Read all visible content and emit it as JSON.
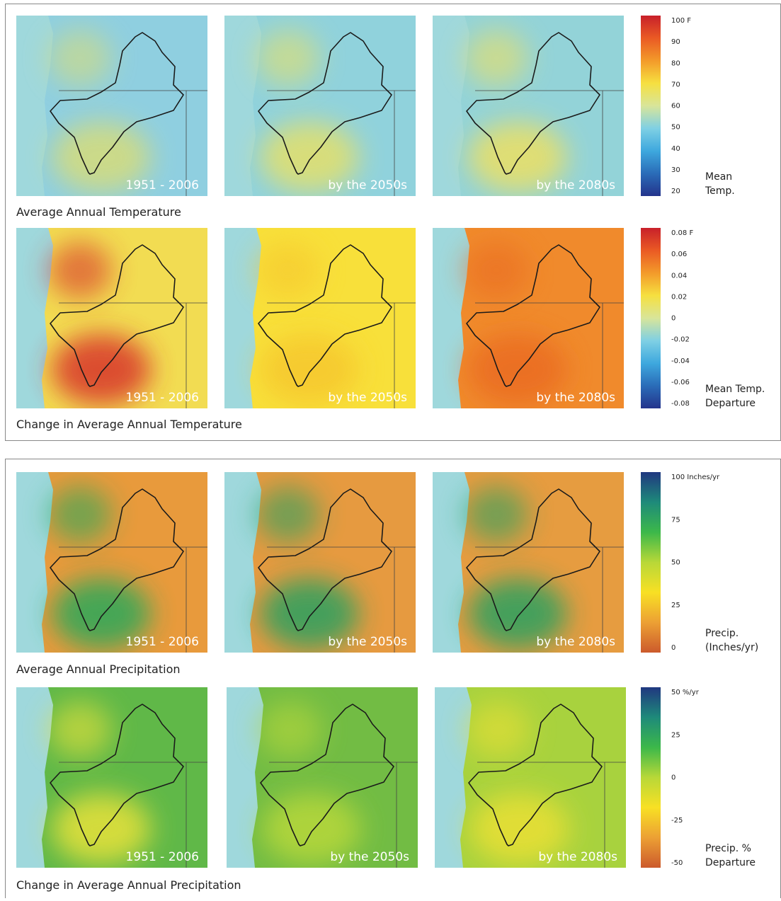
{
  "panels": [
    {
      "rows": [
        {
          "caption": "Average Annual Temperature",
          "maps": [
            {
              "label": "1951 - 2006",
              "colors": [
                "#8fcfe0",
                "#d6dc7a"
              ]
            },
            {
              "label": "by the 2050s",
              "colors": [
                "#90d2dc",
                "#e4e06a"
              ]
            },
            {
              "label": "by the 2080s",
              "colors": [
                "#93d3d8",
                "#ece064"
              ]
            }
          ],
          "legend": {
            "ticks": [
              "100 F",
              "90",
              "80",
              "70",
              "60",
              "50",
              "40",
              "30",
              "20"
            ],
            "title": [
              "Mean",
              "Temp."
            ],
            "colors": [
              "#c8202a",
              "#ea5a24",
              "#f39a2a",
              "#f6e040",
              "#d8e59a",
              "#7fd0e4",
              "#3ea8de",
              "#2a6cb8",
              "#24348c"
            ]
          }
        },
        {
          "caption": "Change in Average Annual Temperature",
          "maps": [
            {
              "label": "1951 - 2006",
              "colors": [
                "#f2dc52",
                "#d8342a"
              ]
            },
            {
              "label": "by the 2050s",
              "colors": [
                "#f8e03a",
                "#f6c82e"
              ]
            },
            {
              "label": "by the 2080s",
              "colors": [
                "#f08a2c",
                "#ea6c24"
              ]
            }
          ],
          "legend": {
            "ticks": [
              "0.08 F",
              "0.06",
              "0.04",
              "0.02",
              "0",
              "-0.02",
              "-0.04",
              "-0.06",
              "-0.08"
            ],
            "title": [
              "Mean Temp.",
              "Departure"
            ],
            "colors": [
              "#c8202a",
              "#ea5a24",
              "#f39a2a",
              "#f6e040",
              "#d8e59a",
              "#7fd0e4",
              "#3ea8de",
              "#2a6cb8",
              "#24348c"
            ]
          }
        }
      ]
    },
    {
      "rows": [
        {
          "caption": "Average Annual Precipitation",
          "maps": [
            {
              "label": "1951 - 2006",
              "colors": [
                "#e89a3c",
                "#2ca85a"
              ]
            },
            {
              "label": "by the 2050s",
              "colors": [
                "#e69a40",
                "#2aa060"
              ]
            },
            {
              "label": "by the 2080s",
              "colors": [
                "#e69c40",
                "#2aa060"
              ]
            }
          ],
          "legend": {
            "ticks": [
              "100 Inches/yr",
              "75",
              "50",
              "25",
              "0"
            ],
            "title": [
              "Precip.",
              "(Inches/yr)"
            ],
            "colors": [
              "#203880",
              "#1e8a7a",
              "#3cb84a",
              "#b8d838",
              "#f8e024",
              "#eca034",
              "#cc5a2c"
            ]
          }
        },
        {
          "caption": "Change in Average Annual Precipitation",
          "maps": [
            {
              "label": "1951 - 2006",
              "colors": [
                "#60b848",
                "#e8e23a"
              ]
            },
            {
              "label": "by the 2050s",
              "colors": [
                "#72bc44",
                "#b8d83a"
              ]
            },
            {
              "label": "by the 2080s",
              "colors": [
                "#a8d23e",
                "#eae034"
              ]
            }
          ],
          "legend": {
            "ticks": [
              "50 %/yr",
              "25",
              "0",
              "-25",
              "-50"
            ],
            "title": [
              "Precip. %",
              "Departure"
            ],
            "colors": [
              "#203880",
              "#1e8a7a",
              "#3cb84a",
              "#b8d838",
              "#f8e024",
              "#eca034",
              "#cc5a2c"
            ]
          }
        }
      ]
    }
  ]
}
